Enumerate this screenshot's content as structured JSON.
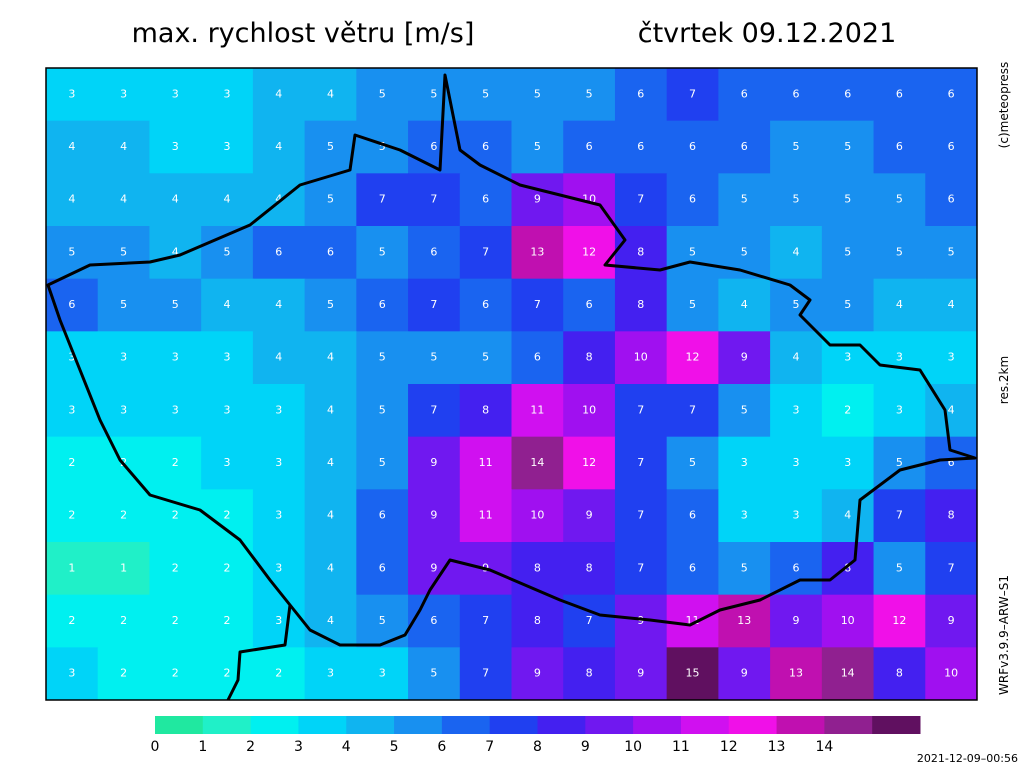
{
  "header": {
    "title": "max. rychlost větru [m/s]",
    "date": "čtvrtek 09.12.2021"
  },
  "side_labels": [
    "(c)meteopress",
    "res.2km",
    "WRFv3.9.9–ARW–S1"
  ],
  "colorbar": {
    "ticks": [
      0,
      1,
      2,
      3,
      4,
      5,
      6,
      7,
      8,
      9,
      10,
      11,
      12,
      13,
      14
    ],
    "colors": [
      "#20e8a0",
      "#20f0c8",
      "#00f0f0",
      "#00d4f8",
      "#10b4f0",
      "#1890f0",
      "#1a64f0",
      "#2040f0",
      "#4420f0",
      "#7018f0",
      "#a010f0",
      "#d010f0",
      "#f010e8",
      "#c010b0",
      "#902090",
      "#601060"
    ]
  },
  "wind_grid": [
    [
      3,
      3,
      3,
      3,
      4,
      4,
      5,
      5,
      5,
      5,
      5,
      6,
      7,
      6,
      6,
      6,
      6,
      6
    ],
    [
      4,
      4,
      3,
      3,
      4,
      5,
      5,
      6,
      6,
      5,
      6,
      6,
      6,
      6,
      5,
      5,
      6,
      6
    ],
    [
      4,
      4,
      4,
      4,
      4,
      5,
      7,
      7,
      6,
      9,
      10,
      7,
      6,
      5,
      5,
      5,
      5,
      6
    ],
    [
      5,
      5,
      4,
      5,
      6,
      6,
      5,
      6,
      7,
      13,
      12,
      8,
      5,
      5,
      4,
      5,
      5,
      5
    ],
    [
      6,
      5,
      5,
      4,
      4,
      5,
      6,
      7,
      6,
      7,
      6,
      8,
      5,
      4,
      5,
      5,
      4,
      4
    ],
    [
      3,
      3,
      3,
      3,
      4,
      4,
      5,
      5,
      5,
      6,
      8,
      10,
      12,
      9,
      4,
      3,
      3,
      3
    ],
    [
      3,
      3,
      3,
      3,
      3,
      4,
      5,
      7,
      8,
      11,
      10,
      7,
      7,
      5,
      3,
      2,
      3,
      4
    ],
    [
      2,
      2,
      2,
      3,
      3,
      4,
      5,
      9,
      11,
      14,
      12,
      7,
      5,
      3,
      3,
      3,
      5,
      6
    ],
    [
      2,
      2,
      2,
      2,
      3,
      4,
      6,
      9,
      11,
      10,
      9,
      7,
      6,
      3,
      3,
      4,
      7,
      8
    ],
    [
      1,
      1,
      2,
      2,
      3,
      4,
      6,
      9,
      9,
      8,
      8,
      7,
      6,
      5,
      6,
      8,
      5,
      7
    ],
    [
      2,
      2,
      2,
      2,
      3,
      4,
      5,
      6,
      7,
      8,
      7,
      9,
      11,
      13,
      9,
      10,
      12,
      9
    ],
    [
      3,
      2,
      2,
      2,
      2,
      3,
      3,
      5,
      7,
      9,
      8,
      9,
      15,
      9,
      13,
      14,
      8,
      10
    ]
  ],
  "timestamp": "2021-12-09–00:56"
}
